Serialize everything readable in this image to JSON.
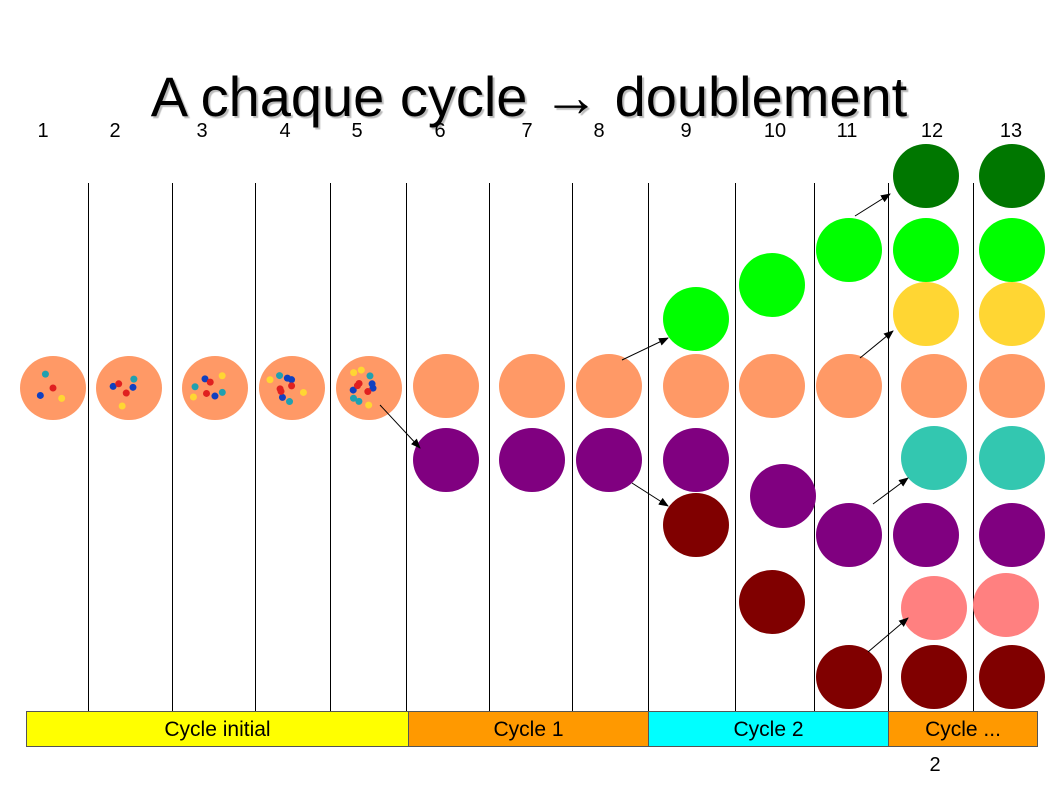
{
  "title": "A chaque cycle → doublement",
  "column_numbers": [
    "1",
    "2",
    "3",
    "4",
    "5",
    "6",
    "7",
    "8",
    "9",
    "10",
    "11",
    "12",
    "13"
  ],
  "cycles": [
    {
      "label": "Cycle initial",
      "color": "#ffff00"
    },
    {
      "label": "Cycle 1",
      "color": "#ff9900"
    },
    {
      "label": "Cycle 2",
      "color": "#00ffff"
    },
    {
      "label": "Cycle ...",
      "color": "#ff9900"
    }
  ],
  "page_number": "2",
  "colors": {
    "orange": "#ff9966",
    "purple": "#800080",
    "maroon": "#800000",
    "green": "#00ff00",
    "dark_green": "#007700",
    "yellow": "#ffd633",
    "teal": "#33c7b0",
    "pink": "#ff8080"
  }
}
